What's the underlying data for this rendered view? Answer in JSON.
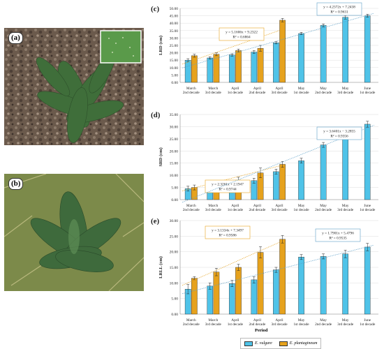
{
  "photos": {
    "a_label": "(a)",
    "b_label": "(b)"
  },
  "x_axis_title": "Period",
  "legend": [
    {
      "label": "E. vulgare",
      "color": "#4fc3e8"
    },
    {
      "label": "E. plantagineum",
      "color": "#e6a21d"
    }
  ],
  "colors": {
    "vulgare": "#4fc3e8",
    "plantagineum": "#e6a21d",
    "trend": "#5ea0c8",
    "grid": "#dddddd"
  },
  "chart_data": [
    {
      "type": "bar",
      "panel_label": "(c)",
      "ylabel": "LRD (cm)",
      "ylim": [
        0,
        50
      ],
      "yticks": [
        "0.00",
        "5.00",
        "10.00",
        "15.00",
        "20.00",
        "25.00",
        "30.00",
        "35.00",
        "40.00",
        "45.00",
        "50.00"
      ],
      "categories": [
        [
          "March",
          "2nd decade"
        ],
        [
          "March",
          "3rd decade"
        ],
        [
          "April",
          "1st decade"
        ],
        [
          "April",
          "2nd decade"
        ],
        [
          "April",
          "3rd decade"
        ],
        [
          "May",
          "1st decade"
        ],
        [
          "May",
          "2nd decade"
        ],
        [
          "May",
          "3rd decade"
        ],
        [
          "June",
          "1st decade"
        ]
      ],
      "series": [
        {
          "name": "E. vulgare",
          "values": [
            15.0,
            16.5,
            18.5,
            20.5,
            26.8,
            33.0,
            38.5,
            44.0,
            45.0
          ],
          "errors": [
            1.0,
            0.8,
            0.8,
            1.0,
            0.8,
            0.8,
            1.0,
            1.2,
            1.0
          ]
        },
        {
          "name": "E. plantagineum",
          "values": [
            18.0,
            19.0,
            21.5,
            23.0,
            42.0,
            null,
            null,
            null,
            null
          ],
          "errors": [
            1.0,
            1.0,
            1.0,
            2.0,
            1.2,
            null,
            null,
            null,
            null
          ]
        }
      ],
      "trendlines": [
        {
          "series": "E. plantagineum",
          "equation": "y = 5.1606x + 9.2322",
          "r2": "R² = 0.6864",
          "points": 5
        },
        {
          "series": "E. vulgare",
          "equation": "y = 4.2372x + 7.2438",
          "r2": "R² = 0.9631",
          "points": 9
        }
      ]
    },
    {
      "type": "bar",
      "panel_label": "(d)",
      "ylabel": "SRD (cm)",
      "ylim": [
        0,
        35
      ],
      "yticks": [
        "0.00",
        "5.00",
        "10.00",
        "15.00",
        "20.00",
        "25.00",
        "30.00",
        "35.00"
      ],
      "categories": [
        [
          "March",
          "2nd decade"
        ],
        [
          "March",
          "3rd decade"
        ],
        [
          "April",
          "1st decade"
        ],
        [
          "April",
          "2nd decade"
        ],
        [
          "April",
          "3rd decade"
        ],
        [
          "May",
          "1st decade"
        ],
        [
          "May",
          "2nd decade"
        ],
        [
          "May",
          "3rd decade"
        ],
        [
          "June",
          "1st decade"
        ]
      ],
      "series": [
        {
          "name": "E. vulgare",
          "values": [
            4.5,
            5.0,
            6.8,
            7.8,
            11.5,
            16.0,
            22.5,
            28.5,
            31.0
          ],
          "errors": [
            1.0,
            1.0,
            1.0,
            1.0,
            1.0,
            1.0,
            1.0,
            1.2,
            1.2
          ]
        },
        {
          "name": "E. plantagineum",
          "values": [
            5.0,
            6.5,
            8.0,
            11.0,
            14.5,
            null,
            null,
            null,
            null
          ],
          "errors": [
            1.0,
            1.0,
            1.2,
            2.0,
            1.2,
            null,
            null,
            null,
            null
          ]
        }
      ],
      "trendlines": [
        {
          "series": "E. plantagineum",
          "equation": "y = 2.3261x + 2.1947",
          "r2": "R² = 0.9744",
          "points": 5
        },
        {
          "series": "E. vulgare",
          "equation": "y = 3.6401x − 3.2855",
          "r2": "R² = 0.9356",
          "points": 9
        }
      ]
    },
    {
      "type": "bar",
      "panel_label": "(e)",
      "ylabel": "LRLL (cm)",
      "ylim": [
        0,
        30
      ],
      "yticks": [
        "0.00",
        "5.00",
        "10.00",
        "15.00",
        "20.00",
        "25.00",
        "30.00"
      ],
      "categories": [
        [
          "March",
          "2nd decade"
        ],
        [
          "March",
          "3rd decade"
        ],
        [
          "April",
          "1st decade"
        ],
        [
          "April",
          "2nd decade"
        ],
        [
          "April",
          "3rd decade"
        ],
        [
          "May",
          "1st decade"
        ],
        [
          "May",
          "2nd decade"
        ],
        [
          "May",
          "3rd decade"
        ],
        [
          "June",
          "1st decade"
        ]
      ],
      "series": [
        {
          "name": "E. vulgare",
          "values": [
            8.0,
            9.0,
            9.8,
            11.0,
            14.2,
            18.3,
            18.5,
            19.3,
            21.5
          ],
          "errors": [
            1.5,
            1.0,
            1.0,
            1.0,
            0.8,
            0.8,
            0.8,
            1.2,
            1.2
          ]
        },
        {
          "name": "E. plantagineum",
          "values": [
            11.5,
            13.5,
            15.0,
            19.8,
            24.0,
            null,
            null,
            null,
            null
          ],
          "errors": [
            0.5,
            1.2,
            1.0,
            1.8,
            1.2,
            null,
            null,
            null,
            null
          ]
        }
      ],
      "trendlines": [
        {
          "series": "E. plantagineum",
          "equation": "y = 3.1334x + 7.3497",
          "r2": "R² = 0.9586",
          "points": 5
        },
        {
          "series": "E. vulgare",
          "equation": "y = 1.7901x + 5.4796",
          "r2": "R² = 0.9535",
          "points": 9
        }
      ]
    }
  ]
}
